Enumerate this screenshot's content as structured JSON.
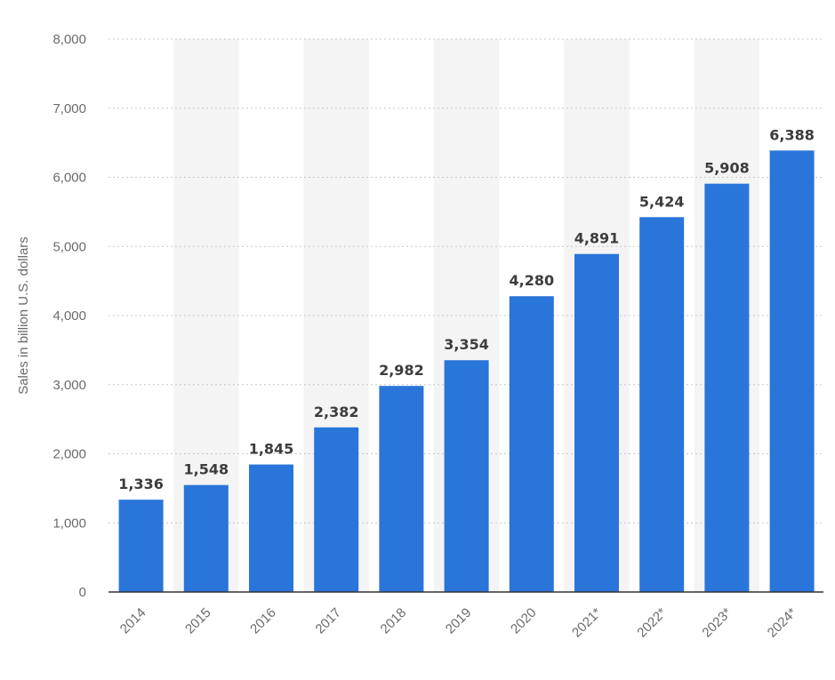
{
  "chart_data": {
    "type": "bar",
    "categories": [
      "2014",
      "2015",
      "2016",
      "2017",
      "2018",
      "2019",
      "2020",
      "2021*",
      "2022*",
      "2023*",
      "2024*"
    ],
    "values": [
      1336,
      1548,
      1845,
      2382,
      2982,
      3354,
      4280,
      4891,
      5424,
      5908,
      6388
    ],
    "value_labels": [
      "1,336",
      "1,548",
      "1,845",
      "2,382",
      "2,982",
      "3,354",
      "4,280",
      "4,891",
      "5,424",
      "5,908",
      "6,388"
    ],
    "title": "",
    "xlabel": "",
    "ylabel": "Sales in billion U.S. dollars",
    "ylim": [
      0,
      8000
    ],
    "yticks": [
      0,
      1000,
      2000,
      3000,
      4000,
      5000,
      6000,
      7000,
      8000
    ],
    "ytick_labels": [
      "0",
      "1,000",
      "2,000",
      "3,000",
      "4,000",
      "5,000",
      "6,000",
      "7,000",
      "8,000"
    ],
    "grid": true,
    "grid_style": "dotted",
    "alternating_column_shading": true,
    "colors": {
      "bar": "#2a75d9",
      "column_shade": "#f4f4f4",
      "grid": "#c8c8c8",
      "axis": "#333333",
      "tick_text": "#6b6b6b",
      "value_text": "#3c3c3c"
    }
  }
}
